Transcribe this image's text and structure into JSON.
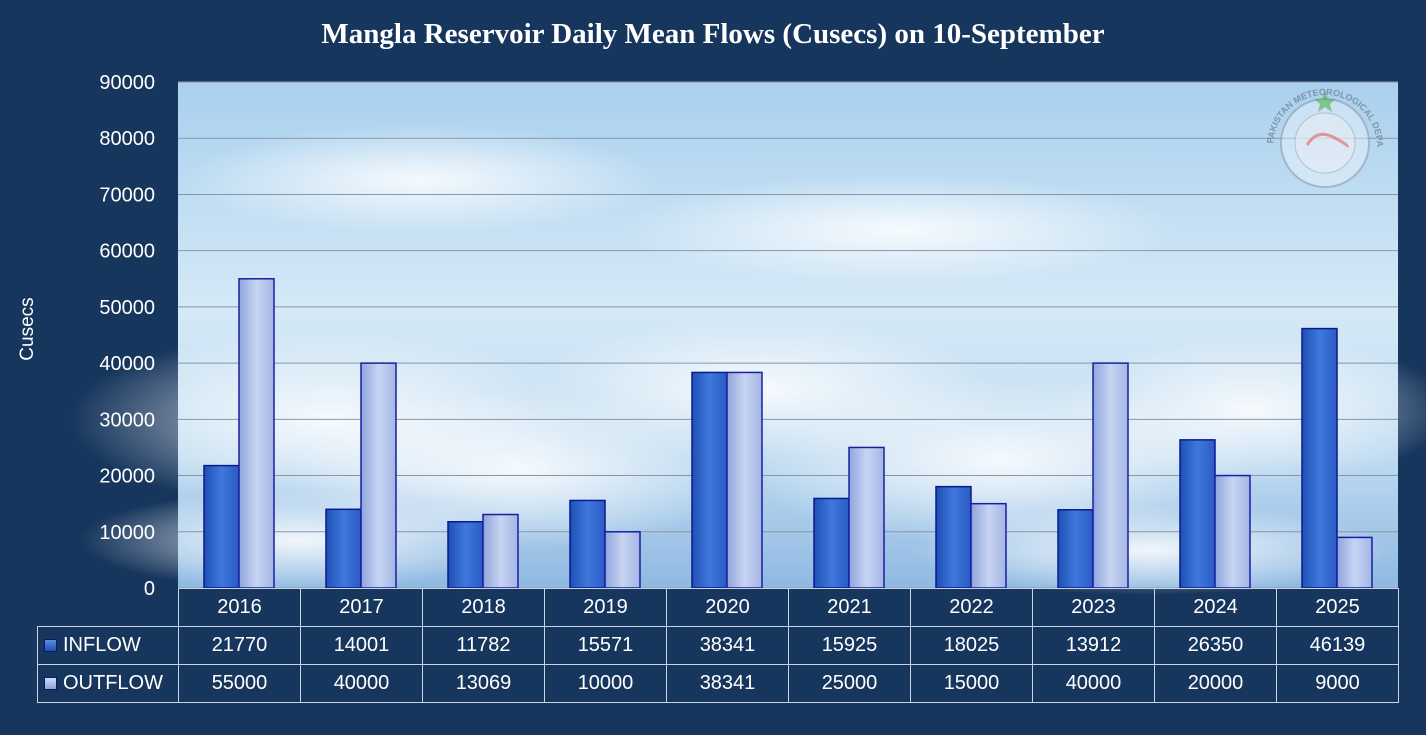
{
  "chart_data": {
    "type": "bar",
    "title": "Mangla Reservoir Daily Mean Flows (Cusecs) on 10-September",
    "ylabel": "Cusecs",
    "ylim": [
      0,
      90000
    ],
    "yticks": [
      "0",
      "10000",
      "20000",
      "30000",
      "40000",
      "50000",
      "60000",
      "70000",
      "80000",
      "90000"
    ],
    "grid": true,
    "categories": [
      "2016",
      "2017",
      "2018",
      "2019",
      "2020",
      "2021",
      "2022",
      "2023",
      "2024",
      "2025"
    ],
    "series": [
      {
        "name": "INFLOW",
        "color": "#2f62c8",
        "values": [
          21770,
          14001,
          11782,
          15571,
          38341,
          15925,
          18025,
          13912,
          26350,
          46139
        ]
      },
      {
        "name": "OUTFLOW",
        "color": "#aab9e6",
        "values": [
          55000,
          40000,
          13069,
          10000,
          38341,
          25000,
          15000,
          40000,
          20000,
          9000
        ]
      }
    ],
    "table_values": {
      "INFLOW": [
        "21770",
        "14001",
        "11782",
        "15571",
        "38341",
        "15925",
        "18025",
        "13912",
        "26350",
        "46139"
      ],
      "OUTFLOW": [
        "55000",
        "40000",
        "13069",
        "10000",
        "38341",
        "25000",
        "15000",
        "40000",
        "20000",
        "9000"
      ]
    }
  },
  "watermark": {
    "text": "PAKISTAN METEOROLOGICAL DEPARTMENT"
  },
  "colors": {
    "background": "#17365d",
    "inflow": "#2f62c8",
    "outflow": "#aab9e6"
  }
}
